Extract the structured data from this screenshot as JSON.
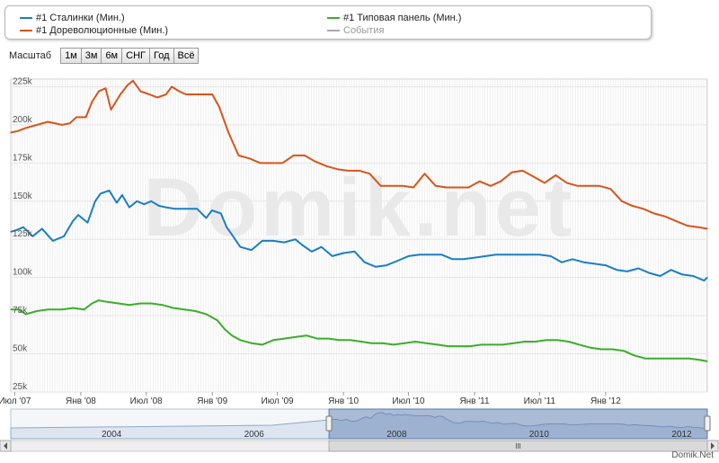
{
  "legend": {
    "items": [
      {
        "label": "#1 Сталинки (Мин.)",
        "color": "#1b7fc1"
      },
      {
        "label": "#1 Дореволюционные (Мин.)",
        "color": "#d6551c"
      },
      {
        "label": "#1 Типовая панель (Мин.)",
        "color": "#3aae2a"
      },
      {
        "label": "События",
        "color": "#aaaaaa"
      }
    ]
  },
  "toolbar": {
    "label": "Масштаб",
    "buttons": [
      "1м",
      "3м",
      "6м",
      "СНГ",
      "Год",
      "Всё"
    ]
  },
  "watermark": "Domik.net",
  "footer": "Domik.Net",
  "chart_data": {
    "type": "line",
    "ylim": [
      25,
      230
    ],
    "y_ticks": [
      "25k",
      "50k",
      "75k",
      "100k",
      "125k",
      "150k",
      "175k",
      "200k",
      "225k"
    ],
    "x_ticks": [
      "Июл '07",
      "Янв '08",
      "Июл '08",
      "Янв '09",
      "Июл '09",
      "Янв '10",
      "Июл '10",
      "Янв '11",
      "Июл '11",
      "Янв '12"
    ],
    "x_range": [
      "2007-06-20",
      "2012-10-10"
    ],
    "series": [
      {
        "name": "#1 Сталинки (Мин.)",
        "color": "#1b7fc1",
        "x": [
          "2007-06-20",
          "2007-07-05",
          "2007-07-25",
          "2007-08-20",
          "2007-09-15",
          "2007-10-15",
          "2007-11-15",
          "2007-12-10",
          "2007-12-25",
          "2008-01-20",
          "2008-02-10",
          "2008-02-25",
          "2008-03-20",
          "2008-04-10",
          "2008-04-25",
          "2008-05-15",
          "2008-06-05",
          "2008-06-25",
          "2008-07-15",
          "2008-08-05",
          "2008-08-25",
          "2008-09-20",
          "2008-10-20",
          "2008-11-20",
          "2008-12-15",
          "2008-12-31",
          "2009-01-25",
          "2009-02-10",
          "2009-02-25",
          "2009-03-20",
          "2009-04-20",
          "2009-05-20",
          "2009-06-20",
          "2009-07-20",
          "2009-08-20",
          "2009-09-10",
          "2009-10-05",
          "2009-11-01",
          "2009-12-01",
          "2010-01-01",
          "2010-02-01",
          "2010-03-01",
          "2010-04-01",
          "2010-05-01",
          "2010-06-01",
          "2010-07-01",
          "2010-08-01",
          "2010-09-01",
          "2010-10-01",
          "2010-11-01",
          "2010-12-01",
          "2011-01-01",
          "2011-02-01",
          "2011-03-01",
          "2011-04-01",
          "2011-05-01",
          "2011-06-01",
          "2011-07-01",
          "2011-08-01",
          "2011-09-01",
          "2011-10-01",
          "2011-11-01",
          "2011-12-01",
          "2012-01-01",
          "2012-02-01",
          "2012-03-01",
          "2012-04-01",
          "2012-05-01",
          "2012-06-01",
          "2012-07-01",
          "2012-08-01",
          "2012-09-01",
          "2012-10-01",
          "2012-10-10"
        ],
        "values": [
          130,
          131,
          133,
          127,
          132,
          124,
          127,
          137,
          141,
          136,
          150,
          155,
          157,
          149,
          154,
          146,
          150,
          148,
          150,
          147,
          146,
          145,
          145,
          145,
          139,
          144,
          142,
          133,
          128,
          120,
          118,
          124,
          124,
          123,
          125,
          121,
          117,
          120,
          114,
          116,
          117,
          110,
          107,
          108,
          111,
          114,
          115,
          115,
          115,
          112,
          112,
          113,
          114,
          115,
          115,
          115,
          115,
          115,
          114,
          110,
          112,
          110,
          109,
          108,
          105,
          104,
          106,
          103,
          101,
          105,
          102,
          101,
          98,
          100
        ]
      },
      {
        "name": "#1 Дореволюционные (Мин.)",
        "color": "#d6551c",
        "x": [
          "2007-06-20",
          "2007-07-10",
          "2007-08-01",
          "2007-09-01",
          "2007-10-01",
          "2007-11-10",
          "2007-12-01",
          "2007-12-20",
          "2008-01-15",
          "2008-02-01",
          "2008-02-20",
          "2008-03-10",
          "2008-03-25",
          "2008-04-20",
          "2008-05-10",
          "2008-05-25",
          "2008-06-15",
          "2008-07-10",
          "2008-08-01",
          "2008-08-25",
          "2008-09-10",
          "2008-10-01",
          "2008-10-20",
          "2008-11-20",
          "2008-12-15",
          "2009-01-01",
          "2009-01-20",
          "2009-02-15",
          "2009-03-15",
          "2009-04-15",
          "2009-05-15",
          "2009-06-15",
          "2009-07-15",
          "2009-08-15",
          "2009-09-15",
          "2009-10-15",
          "2009-11-15",
          "2009-12-15",
          "2010-01-15",
          "2010-02-15",
          "2010-03-15",
          "2010-04-15",
          "2010-05-15",
          "2010-06-15",
          "2010-07-15",
          "2010-08-15",
          "2010-09-15",
          "2010-10-15",
          "2010-11-15",
          "2010-12-15",
          "2011-01-15",
          "2011-02-15",
          "2011-03-15",
          "2011-04-15",
          "2011-05-15",
          "2011-06-15",
          "2011-07-15",
          "2011-08-15",
          "2011-09-15",
          "2011-10-15",
          "2011-11-15",
          "2011-12-15",
          "2012-01-15",
          "2012-02-15",
          "2012-03-15",
          "2012-04-15",
          "2012-05-15",
          "2012-06-15",
          "2012-07-15",
          "2012-08-15",
          "2012-09-15",
          "2012-10-10"
        ],
        "values": [
          195,
          196,
          198,
          200,
          202,
          200,
          201,
          205,
          205,
          215,
          222,
          224,
          210,
          220,
          226,
          229,
          222,
          220,
          218,
          220,
          225,
          222,
          220,
          220,
          220,
          220,
          212,
          195,
          180,
          178,
          175,
          175,
          175,
          180,
          180,
          176,
          173,
          171,
          170,
          170,
          168,
          160,
          160,
          160,
          159,
          168,
          160,
          159,
          159,
          159,
          163,
          160,
          163,
          169,
          170,
          166,
          162,
          167,
          162,
          160,
          160,
          160,
          158,
          150,
          147,
          145,
          142,
          140,
          137,
          134,
          133,
          132
        ]
      },
      {
        "name": "#1 Типовая панель (Мин.)",
        "color": "#3aae2a",
        "x": [
          "2007-06-20",
          "2007-07-10",
          "2007-08-01",
          "2007-09-01",
          "2007-10-01",
          "2007-11-10",
          "2007-12-10",
          "2008-01-10",
          "2008-02-01",
          "2008-02-20",
          "2008-03-15",
          "2008-04-15",
          "2008-05-15",
          "2008-06-15",
          "2008-07-15",
          "2008-08-15",
          "2008-09-15",
          "2008-10-15",
          "2008-11-15",
          "2008-12-15",
          "2009-01-15",
          "2009-02-05",
          "2009-02-25",
          "2009-03-20",
          "2009-04-20",
          "2009-05-20",
          "2009-06-20",
          "2009-07-20",
          "2009-08-20",
          "2009-09-20",
          "2009-10-20",
          "2009-11-20",
          "2009-12-20",
          "2010-01-20",
          "2010-02-20",
          "2010-03-20",
          "2010-04-20",
          "2010-05-20",
          "2010-06-20",
          "2010-07-20",
          "2010-08-20",
          "2010-09-20",
          "2010-10-20",
          "2010-11-20",
          "2010-12-20",
          "2011-01-20",
          "2011-02-20",
          "2011-03-20",
          "2011-04-20",
          "2011-05-20",
          "2011-06-20",
          "2011-07-20",
          "2011-08-20",
          "2011-09-20",
          "2011-10-20",
          "2011-11-20",
          "2011-12-20",
          "2012-01-20",
          "2012-02-20",
          "2012-03-20",
          "2012-04-20",
          "2012-05-20",
          "2012-06-20",
          "2012-07-20",
          "2012-08-20",
          "2012-09-20",
          "2012-10-10"
        ],
        "values": [
          79,
          79,
          76,
          78,
          79,
          79,
          80,
          79,
          83,
          85,
          84,
          83,
          82,
          83,
          83,
          82,
          80,
          79,
          78,
          76,
          72,
          66,
          62,
          59,
          57,
          56,
          59,
          60,
          61,
          62,
          60,
          60,
          59,
          59,
          58,
          57,
          57,
          56,
          57,
          58,
          57,
          56,
          55,
          55,
          55,
          56,
          56,
          56,
          57,
          58,
          58,
          59,
          59,
          58,
          56,
          54,
          53,
          53,
          52,
          49,
          47,
          47,
          47,
          47,
          47,
          46,
          45
        ]
      }
    ]
  },
  "navigator": {
    "year_labels": [
      "2004",
      "2006",
      "2008",
      "2010",
      "2012"
    ],
    "selection": [
      "2007-06-20",
      "2012-10-10"
    ]
  }
}
